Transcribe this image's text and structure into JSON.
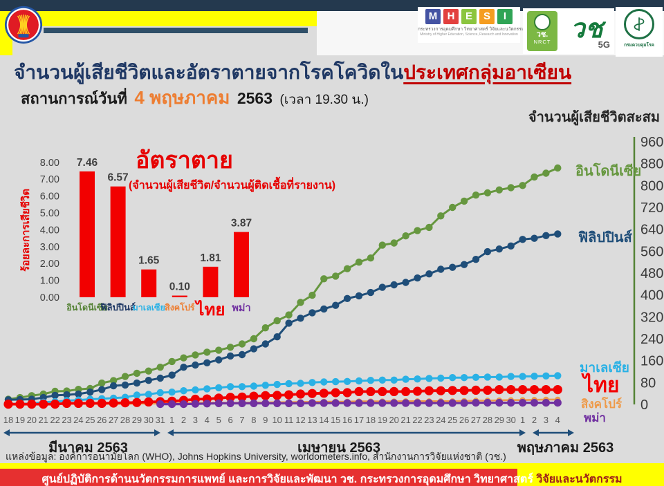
{
  "header": {
    "mhesi": {
      "letters": [
        "M",
        "H",
        "E",
        "S",
        "I"
      ],
      "letter_colors": [
        "#4453a3",
        "#e2403e",
        "#8bc53f",
        "#f59d20",
        "#2fa455"
      ],
      "thai_line": "กระทรวงการอุดมศึกษา วิทยาศาสตร์ วิจัยและนวัตกรรม",
      "eng_line": "Ministry of Higher Education, Science, Research and Innovation"
    },
    "nrct": {
      "line1": "วช.",
      "line2": "NRCT"
    },
    "wor_logo": {
      "text": "วช",
      "sub": "5G"
    },
    "moph": {
      "label": "กรมควบคุมโรค"
    }
  },
  "title": {
    "blue": "จำนวนผู้เสียชีวิตและอัตราตายจากโรคโควิดใน",
    "red": "ประเทศกลุ่มอาเซียน"
  },
  "subtitle": {
    "prefix": "สถานการณ์วันที่",
    "date": "4 พฤษภาคม",
    "year": "2563",
    "time": "(เวลา 19.30 น.)"
  },
  "source": "แหล่งข้อมูล: องค์การอนามัยโลก (WHO), Johns Hopkins University, worldometers.info, สำนักงานการวิจัยแห่งชาติ (วช.)",
  "footer": {
    "main": "ศูนย์ปฏิบัติการด้านนวัตกรรมการแพทย์ และการวิจัยและพัฒนา  วช.   กระทรวงการอุดมศึกษา วิทยาศาสตร์ ",
    "tail": "วิจัยและนวัตกรรม"
  },
  "colors": {
    "background": "#dcdcdc",
    "top_bar": "#24394e",
    "accent_yellow": "#ffff00",
    "title_blue": "#1f3864",
    "title_red": "#c00000",
    "date_orange": "#ed7d31",
    "footer_red": "#e63030"
  },
  "chart_data": [
    {
      "type": "line",
      "title": "จำนวนผู้เสียชีวิตสะสม",
      "ylim": [
        0,
        960
      ],
      "ytick_step": 80,
      "axis_color": "#548235",
      "grid": false,
      "legend_position": "right-of-line-ends",
      "x_categories": [
        "18",
        "19",
        "20",
        "21",
        "22",
        "23",
        "24",
        "25",
        "26",
        "27",
        "28",
        "29",
        "30",
        "31",
        "1",
        "2",
        "3",
        "4",
        "5",
        "6",
        "7",
        "8",
        "9",
        "10",
        "11",
        "12",
        "13",
        "14",
        "15",
        "16",
        "17",
        "18",
        "19",
        "20",
        "21",
        "22",
        "23",
        "24",
        "25",
        "26",
        "27",
        "28",
        "29",
        "30",
        "1",
        "2",
        "3",
        "4"
      ],
      "x_periods": [
        {
          "label": "มีนาคม 2563",
          "days": 14
        },
        {
          "label": "เมษายน 2563",
          "days": 30
        },
        {
          "label": "พฤษภาคม 2563",
          "days": 4
        }
      ],
      "series": [
        {
          "name": "อินโดนีเซีย",
          "color": "#66973f",
          "values": [
            19,
            25,
            32,
            38,
            48,
            49,
            55,
            58,
            78,
            87,
            102,
            114,
            122,
            136,
            157,
            170,
            181,
            191,
            198,
            209,
            221,
            240,
            280,
            306,
            327,
            373,
            399,
            459,
            469,
            496,
            520,
            535,
            582,
            590,
            616,
            635,
            647,
            689,
            720,
            743,
            765,
            773,
            784,
            792,
            800,
            831,
            845,
            864
          ]
        },
        {
          "name": "ฟิลิปปินส์",
          "color": "#1f4e79",
          "values": [
            17,
            18,
            19,
            25,
            33,
            35,
            38,
            45,
            54,
            68,
            71,
            78,
            88,
            96,
            107,
            136,
            144,
            152,
            163,
            177,
            182,
            203,
            221,
            247,
            297,
            315,
            335,
            349,
            362,
            387,
            397,
            409,
            428,
            437,
            446,
            462,
            477,
            494,
            501,
            511,
            530,
            558,
            568,
            579,
            603,
            607,
            617,
            623
          ]
        },
        {
          "name": "มาเลเซีย",
          "color": "#2ab1e5",
          "values": [
            2,
            2,
            3,
            8,
            10,
            14,
            16,
            19,
            21,
            23,
            26,
            34,
            37,
            43,
            45,
            50,
            53,
            57,
            61,
            65,
            65,
            67,
            70,
            73,
            76,
            77,
            80,
            82,
            83,
            84,
            86,
            88,
            89,
            89,
            92,
            93,
            95,
            96,
            98,
            98,
            99,
            100,
            100,
            102,
            102,
            103,
            104,
            105
          ]
        },
        {
          "name": "สิงคโปร์",
          "color": "#ee9a49",
          "values": [
            0,
            0,
            0,
            2,
            2,
            2,
            2,
            2,
            2,
            2,
            2,
            3,
            3,
            3,
            3,
            4,
            5,
            6,
            6,
            6,
            6,
            7,
            7,
            8,
            8,
            9,
            9,
            10,
            10,
            10,
            11,
            11,
            11,
            11,
            12,
            12,
            12,
            12,
            12,
            13,
            14,
            14,
            15,
            16,
            16,
            17,
            18,
            18
          ]
        },
        {
          "name": "ไทย",
          "color": "#f20000",
          "values": [
            1,
            1,
            1,
            1,
            1,
            4,
            4,
            4,
            4,
            5,
            6,
            7,
            9,
            10,
            12,
            15,
            19,
            20,
            23,
            26,
            27,
            30,
            32,
            33,
            35,
            38,
            40,
            41,
            43,
            43,
            47,
            47,
            47,
            47,
            47,
            48,
            50,
            50,
            51,
            51,
            52,
            52,
            54,
            54,
            54,
            54,
            54,
            54
          ]
        },
        {
          "name": "พม่า",
          "color": "#7030a0",
          "values": [
            null,
            null,
            null,
            null,
            null,
            null,
            null,
            null,
            null,
            null,
            null,
            null,
            null,
            1,
            1,
            1,
            2,
            3,
            4,
            4,
            4,
            4,
            4,
            4,
            4,
            4,
            5,
            5,
            5,
            5,
            5,
            5,
            5,
            5,
            5,
            5,
            5,
            5,
            5,
            5,
            6,
            6,
            6,
            6,
            6,
            6,
            6,
            6
          ]
        }
      ]
    },
    {
      "type": "bar",
      "title": "อัตราตาย",
      "subtitle": "(จำนวนผู้เสียชีวิต/จำนวนผู้ติดเชื้อที่รายงาน)",
      "ylabel": "ร้อยละการเสียชีวิต",
      "ylim": [
        0,
        8
      ],
      "ytick_step": 1,
      "bar_color": "#f20000",
      "categories": [
        "อินโดนีเซีย",
        "ฟิลิปปินส์",
        "มาเลเซีย",
        "สิงคโปร์",
        "ไทย",
        "พม่า"
      ],
      "category_colors": [
        "#548235",
        "#1f3864",
        "#2ab1e5",
        "#ed7d31",
        "#f20000",
        "#7030a0"
      ],
      "values": [
        7.46,
        6.57,
        1.65,
        0.1,
        1.81,
        3.87
      ]
    }
  ]
}
